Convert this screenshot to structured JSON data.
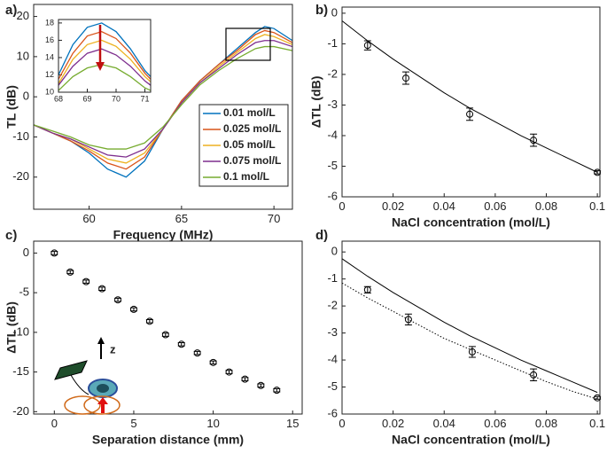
{
  "chart_data": [
    {
      "type": "line",
      "panel_label": "a)",
      "xlabel": "Frequency (MHz)",
      "ylabel": "TL (dB)",
      "x": [
        57,
        58,
        59,
        60,
        61,
        62,
        63,
        64,
        65,
        66,
        67,
        68,
        69,
        69.5,
        70,
        71
      ],
      "series": [
        {
          "name": "0.01 mol/L",
          "color": "#0072bd",
          "values": [
            -7,
            -9,
            -11,
            -14,
            -18,
            -20,
            -16,
            -8,
            -1,
            4,
            8,
            12,
            16,
            17.5,
            17,
            14
          ]
        },
        {
          "name": "0.025 mol/L",
          "color": "#d95319",
          "values": [
            -7,
            -9,
            -11,
            -13.5,
            -16.5,
            -18,
            -15,
            -8,
            -1,
            4,
            8,
            11.5,
            15.5,
            16.5,
            16,
            13.5
          ]
        },
        {
          "name": "0.05 mol/L",
          "color": "#edb120",
          "values": [
            -7,
            -9,
            -10.5,
            -13,
            -15.5,
            -16.5,
            -14,
            -8,
            -1.5,
            3.5,
            7.5,
            11,
            14.5,
            15.5,
            15,
            13
          ]
        },
        {
          "name": "0.075 mol/L",
          "color": "#7e2f8e",
          "values": [
            -7,
            -9,
            -10.5,
            -12.5,
            -14.5,
            -15,
            -13,
            -8,
            -1.5,
            3.5,
            7,
            10.5,
            13.5,
            14,
            14,
            12.5
          ]
        },
        {
          "name": "0.1 mol/L",
          "color": "#77ac30",
          "values": [
            -7,
            -8.5,
            -10,
            -12,
            -13,
            -13,
            -11.5,
            -7.5,
            -2,
            3,
            6.5,
            9.5,
            12,
            12.5,
            12.5,
            11.5
          ]
        }
      ],
      "xlim": [
        57,
        71
      ],
      "ylim": [
        -28,
        23
      ],
      "xticks": [
        60,
        65,
        70
      ],
      "yticks": [
        -20,
        -10,
        0,
        10,
        20
      ]
    },
    {
      "type": "line",
      "x": [
        68,
        68.5,
        69,
        69.5,
        70,
        70.5,
        71,
        71.2
      ],
      "series": [
        {
          "color": "#0072bd",
          "values": [
            12,
            15.5,
            17.5,
            18,
            17,
            15,
            12.5,
            11.8
          ]
        },
        {
          "color": "#d95319",
          "values": [
            11.5,
            14.5,
            16.5,
            17,
            16.2,
            14.5,
            12.2,
            11.5
          ]
        },
        {
          "color": "#edb120",
          "values": [
            11,
            13.8,
            15.5,
            16,
            15.3,
            13.8,
            11.8,
            11.2
          ]
        },
        {
          "color": "#7e2f8e",
          "values": [
            10.8,
            13,
            14.5,
            15,
            14.3,
            13,
            11.3,
            10.8
          ]
        },
        {
          "color": "#77ac30",
          "values": [
            10.2,
            11.8,
            12.8,
            13.2,
            12.8,
            11.8,
            10.5,
            10.2
          ]
        }
      ],
      "xlim": [
        68,
        71.2
      ],
      "ylim": [
        10,
        18.4
      ],
      "xticks": [
        68,
        69,
        70,
        71
      ],
      "yticks": [
        10,
        12,
        14,
        16,
        18
      ]
    },
    {
      "type": "scatter",
      "panel_label": "b)",
      "xlabel": "NaCl concentration (mol/L)",
      "ylabel": "ΔTL (dB)",
      "x": [
        0.01,
        0.025,
        0.05,
        0.075,
        0.1
      ],
      "values": [
        -1.05,
        -2.12,
        -3.3,
        -4.15,
        -5.2
      ],
      "errors": [
        0.15,
        0.2,
        0.2,
        0.2,
        0.05
      ],
      "fits": [
        {
          "style": "solid",
          "x": [
            0,
            0.01,
            0.02,
            0.03,
            0.04,
            0.05,
            0.06,
            0.07,
            0.08,
            0.09,
            0.1
          ],
          "values": [
            -0.25,
            -0.9,
            -1.5,
            -2.05,
            -2.6,
            -3.1,
            -3.55,
            -4,
            -4.4,
            -4.8,
            -5.2
          ]
        }
      ],
      "xlim": [
        0,
        0.101
      ],
      "ylim": [
        -6,
        0.2
      ],
      "xticks": [
        0,
        0.02,
        0.04,
        0.06,
        0.08,
        0.1
      ],
      "yticks": [
        -6,
        -5,
        -4,
        -3,
        -2,
        -1,
        0
      ]
    },
    {
      "type": "scatter",
      "panel_label": "c)",
      "xlabel": "Separation distance (mm)",
      "ylabel": "ΔTL  (dB)",
      "annotation": "z",
      "x": [
        0,
        1,
        2,
        3,
        4,
        5,
        6,
        7,
        8,
        9,
        10,
        11,
        12,
        13,
        14
      ],
      "values": [
        0,
        -2.4,
        -3.6,
        -4.5,
        -5.9,
        -7.1,
        -8.6,
        -10.3,
        -11.5,
        -12.6,
        -13.8,
        -15,
        -15.9,
        -16.7,
        -17.3
      ],
      "errors": [
        0.2,
        0.2,
        0.2,
        0.2,
        0.2,
        0.2,
        0.2,
        0.2,
        0.2,
        0.2,
        0.2,
        0.2,
        0.2,
        0.2,
        0.2
      ],
      "xlim": [
        -1.3,
        15.6
      ],
      "ylim": [
        -20.3,
        1.5
      ],
      "xticks": [
        0,
        5,
        10,
        15
      ],
      "yticks": [
        -20,
        -15,
        -10,
        -5,
        0
      ]
    },
    {
      "type": "scatter",
      "panel_label": "d)",
      "xlabel": "NaCl concentration (mol/L)",
      "x": [
        0.01,
        0.026,
        0.051,
        0.075,
        0.1
      ],
      "values": [
        -1.4,
        -2.5,
        -3.7,
        -4.55,
        -5.4
      ],
      "errors": [
        0.12,
        0.2,
        0.2,
        0.22,
        0.05
      ],
      "fits": [
        {
          "style": "solid",
          "x": [
            0,
            0.01,
            0.02,
            0.03,
            0.04,
            0.05,
            0.06,
            0.07,
            0.08,
            0.09,
            0.1
          ],
          "values": [
            -0.25,
            -0.9,
            -1.5,
            -2.05,
            -2.6,
            -3.1,
            -3.55,
            -4,
            -4.4,
            -4.8,
            -5.2
          ]
        },
        {
          "style": "dotted",
          "x": [
            0,
            0.01,
            0.02,
            0.03,
            0.04,
            0.05,
            0.06,
            0.07,
            0.08,
            0.09,
            0.1
          ],
          "values": [
            -1.15,
            -1.7,
            -2.2,
            -2.7,
            -3.2,
            -3.6,
            -4,
            -4.4,
            -4.8,
            -5.15,
            -5.45
          ]
        }
      ],
      "xlim": [
        0,
        0.101
      ],
      "ylim": [
        -6,
        0.4
      ],
      "xticks": [
        0,
        0.02,
        0.04,
        0.06,
        0.08,
        0.1
      ],
      "yticks": [
        -6,
        -5,
        -4,
        -3,
        -2,
        -1,
        0
      ]
    }
  ]
}
